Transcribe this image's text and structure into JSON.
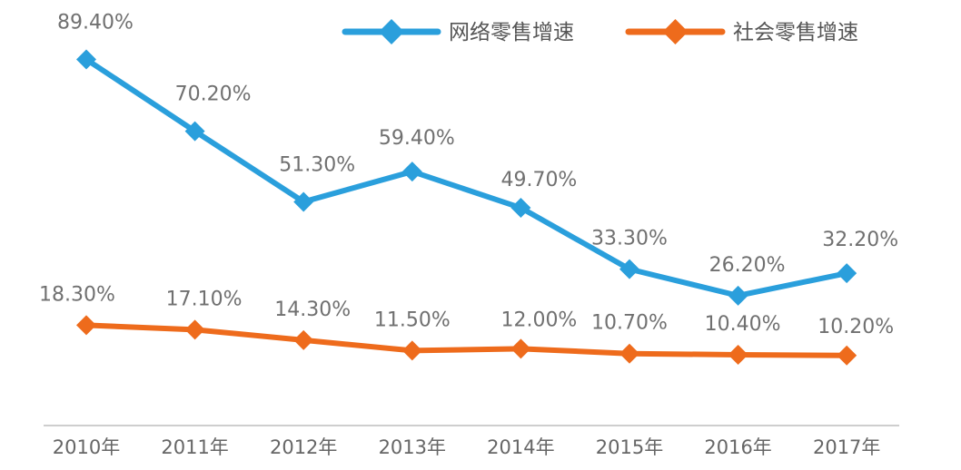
{
  "chart_data": {
    "type": "line",
    "categories": [
      "2010年",
      "2011年",
      "2012年",
      "2013年",
      "2014年",
      "2015年",
      "2016年",
      "2017年"
    ],
    "series": [
      {
        "name": "网络零售增速",
        "color": "#2a9fdc",
        "values": [
          89.4,
          70.2,
          51.3,
          59.4,
          49.7,
          33.3,
          26.2,
          32.2
        ],
        "labels": [
          "89.40%",
          "70.20%",
          "51.30%",
          "59.40%",
          "49.70%",
          "33.30%",
          "26.20%",
          "32.20%"
        ]
      },
      {
        "name": "社会零售增速",
        "color": "#ee6b1c",
        "values": [
          18.3,
          17.1,
          14.3,
          11.5,
          12.0,
          10.7,
          10.4,
          10.2
        ],
        "labels": [
          "18.30%",
          "17.10%",
          "14.30%",
          "11.50%",
          "12.00%",
          "10.70%",
          "10.40%",
          "10.20%"
        ]
      }
    ],
    "ylim": [
      0,
      100
    ],
    "grid": false,
    "legend_position": "top-right",
    "title": "",
    "xlabel": "",
    "ylabel": ""
  }
}
